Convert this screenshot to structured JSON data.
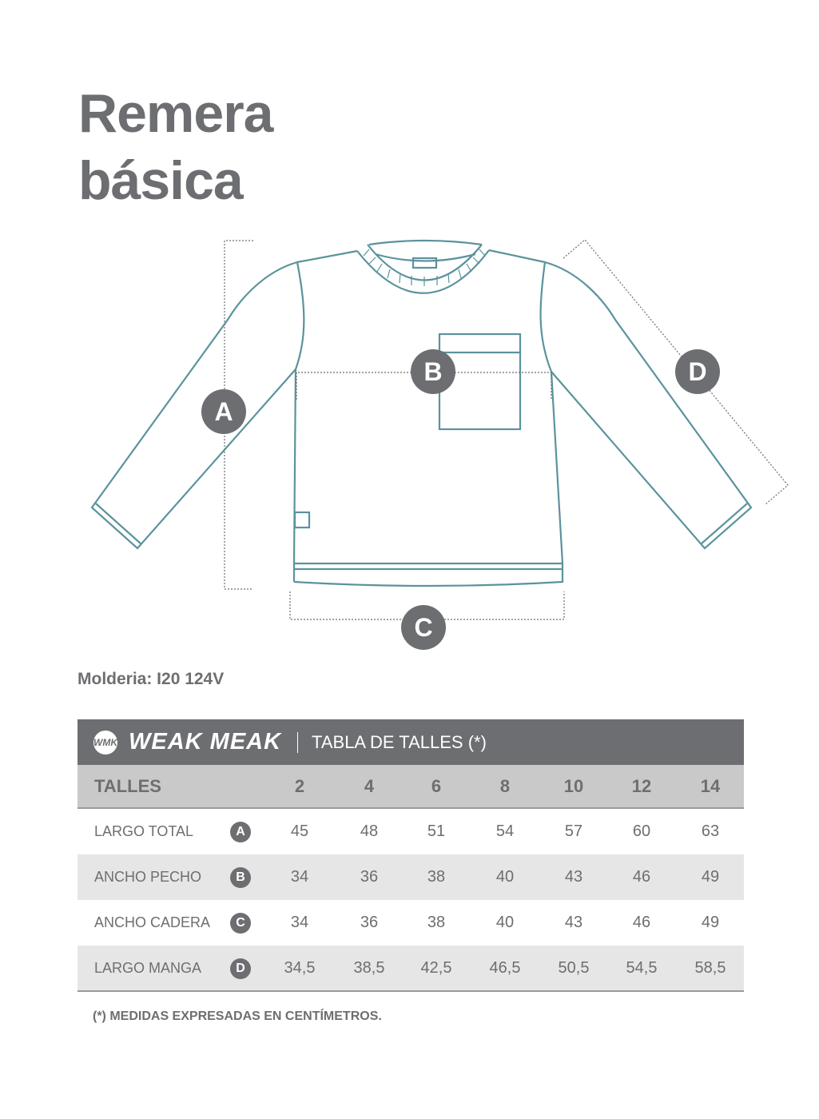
{
  "title": {
    "line1": "Remera",
    "line2": "básica"
  },
  "diagram": {
    "labels": [
      "A",
      "B",
      "C",
      "D"
    ],
    "line_color": "#5b939c",
    "badge_color": "#6d6e71"
  },
  "molderia": "Molderia: I20 124V",
  "table": {
    "brand": "WEAK MEAK",
    "brand_mark": "WMK",
    "title": "TABLA DE TALLES (*)",
    "header_label": "TALLES",
    "sizes": [
      "2",
      "4",
      "6",
      "8",
      "10",
      "12",
      "14"
    ],
    "rows": [
      {
        "label": "LARGO TOTAL",
        "badge": "A",
        "values": [
          "45",
          "48",
          "51",
          "54",
          "57",
          "60",
          "63"
        ]
      },
      {
        "label": "ANCHO PECHO",
        "badge": "B",
        "values": [
          "34",
          "36",
          "38",
          "40",
          "43",
          "46",
          "49"
        ]
      },
      {
        "label": "ANCHO CADERA",
        "badge": "C",
        "values": [
          "34",
          "36",
          "38",
          "40",
          "43",
          "46",
          "49"
        ]
      },
      {
        "label": "LARGO MANGA",
        "badge": "D",
        "values": [
          "34,5",
          "38,5",
          "42,5",
          "46,5",
          "50,5",
          "54,5",
          "58,5"
        ]
      }
    ]
  },
  "note": "(*) MEDIDAS EXPRESADAS EN CENTÍMETROS."
}
